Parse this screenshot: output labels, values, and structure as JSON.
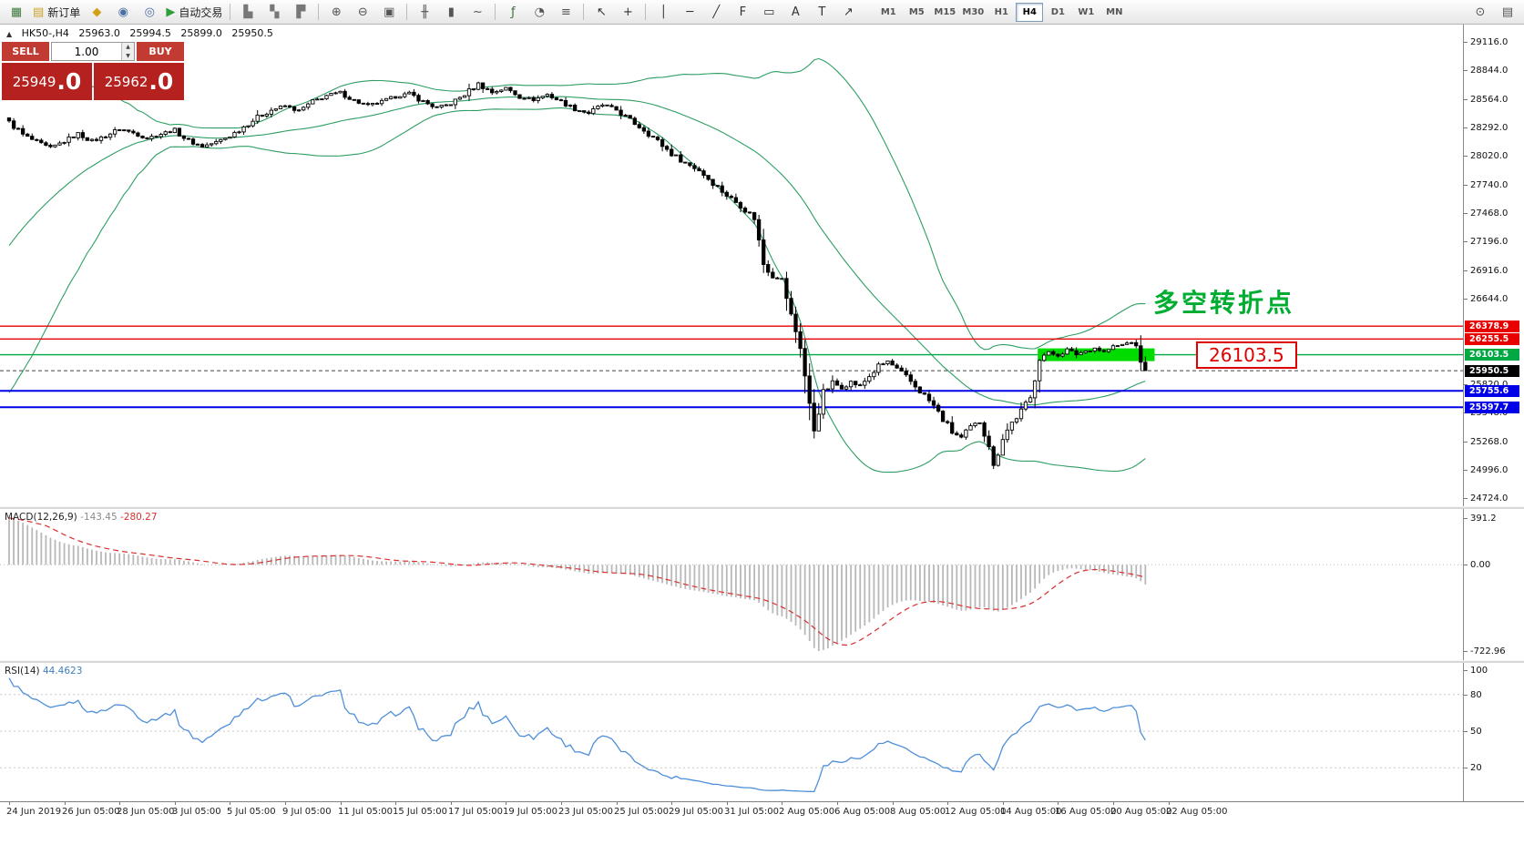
{
  "colors": {
    "bollinger": "#2E9E63",
    "bull": "#FFFFFF",
    "bear": "#000000",
    "candle_outline": "#000000",
    "macd_hist": "#B8B8B8",
    "macd_signal": "#D93030",
    "rsi_line": "#4E8FD9",
    "trade_red": "#B5211E",
    "trade_btn_red": "#C23B33",
    "level_dotted": "#c8c8c8"
  },
  "toolbar": {
    "items": [
      {
        "kind": "icon",
        "name": "new-chart-icon",
        "glyph": "▦",
        "color": "#3e7a3e"
      },
      {
        "kind": "icon-text",
        "name": "new-order-button",
        "glyph": "▤",
        "label": "新订单",
        "color": "#c9a227"
      },
      {
        "kind": "icon",
        "name": "market-watch-icon",
        "glyph": "◆",
        "color": "#d4a017"
      },
      {
        "kind": "icon",
        "name": "data-window-icon",
        "glyph": "◉",
        "color": "#4a6fa5"
      },
      {
        "kind": "icon",
        "name": "navigator-icon",
        "glyph": "◎",
        "color": "#4a6fa5"
      },
      {
        "kind": "icon-text",
        "name": "autotrading-button",
        "glyph": "▶",
        "label": "自动交易",
        "color": "#2e9e3a"
      },
      {
        "kind": "sep"
      },
      {
        "kind": "icon",
        "name": "profile-bars-icon",
        "glyph": "▙",
        "color": "#777777"
      },
      {
        "kind": "icon",
        "name": "profile-save-icon",
        "glyph": "▚",
        "color": "#777777"
      },
      {
        "kind": "icon",
        "name": "profile-load-icon",
        "glyph": "▛",
        "color": "#777777"
      },
      {
        "kind": "sep"
      },
      {
        "kind": "icon",
        "name": "zoom-in-icon",
        "glyph": "⊕",
        "color": "#555555"
      },
      {
        "kind": "icon",
        "name": "zoom-out-icon",
        "glyph": "⊖",
        "color": "#555555"
      },
      {
        "kind": "icon",
        "name": "tile-windows-icon",
        "glyph": "▣",
        "color": "#555555"
      },
      {
        "kind": "sep"
      },
      {
        "kind": "icon",
        "name": "bar-chart-type-icon",
        "glyph": "╫",
        "color": "#555555"
      },
      {
        "kind": "icon",
        "name": "candlestick-type-icon",
        "glyph": "▮",
        "color": "#555555"
      },
      {
        "kind": "icon",
        "name": "line-chart-type-icon",
        "glyph": "~",
        "color": "#555555"
      },
      {
        "kind": "sep"
      },
      {
        "kind": "icon",
        "name": "indicators-icon",
        "glyph": "ƒ",
        "color": "#3a6d3a"
      },
      {
        "kind": "icon",
        "name": "periods-icon",
        "glyph": "◔",
        "color": "#555555"
      },
      {
        "kind": "icon",
        "name": "templates-icon",
        "glyph": "≡",
        "color": "#555555"
      },
      {
        "kind": "sep"
      },
      {
        "kind": "icon",
        "name": "cursor-icon",
        "glyph": "↖",
        "color": "#333333"
      },
      {
        "kind": "icon",
        "name": "crosshair-icon",
        "glyph": "+",
        "color": "#333333"
      },
      {
        "kind": "sep"
      },
      {
        "kind": "icon",
        "name": "vertical-line-icon",
        "glyph": "│",
        "color": "#333333"
      },
      {
        "kind": "icon",
        "name": "horizontal-line-icon",
        "glyph": "─",
        "color": "#333333"
      },
      {
        "kind": "icon",
        "name": "trendline-icon",
        "glyph": "╱",
        "color": "#333333"
      },
      {
        "kind": "icon",
        "name": "fibonacci-icon",
        "glyph": "F",
        "color": "#333333"
      },
      {
        "kind": "icon",
        "name": "channel-icon",
        "glyph": "▭",
        "color": "#333333"
      },
      {
        "kind": "icon",
        "name": "text-icon",
        "glyph": "A",
        "color": "#333333"
      },
      {
        "kind": "icon",
        "name": "text-label-icon",
        "glyph": "T",
        "color": "#333333"
      },
      {
        "kind": "icon",
        "name": "arrows-icon",
        "glyph": "↗",
        "color": "#333333"
      }
    ],
    "timeframes": [
      "M1",
      "M5",
      "M15",
      "M30",
      "H1",
      "H4",
      "D1",
      "W1",
      "MN"
    ],
    "active_timeframe": "H4",
    "right_items": [
      {
        "name": "search-icon",
        "glyph": "⊙"
      },
      {
        "name": "popup-prices-icon",
        "glyph": "▤"
      }
    ]
  },
  "trade_panel": {
    "sell_label": "SELL",
    "buy_label": "BUY",
    "volume": "1.00",
    "spin_up": "▲",
    "spin_down": "▼",
    "sell_price": {
      "main": "25949",
      "frac": ".0"
    },
    "buy_price": {
      "main": "25962",
      "frac": ".0"
    }
  },
  "chart": {
    "header": {
      "collapse_icon": "▲",
      "symbol_period": "HK50-,H4",
      "open": "25963.0",
      "high": "25994.5",
      "low": "25899.0",
      "close": "25950.5"
    },
    "annotation": {
      "text": "多空转折点",
      "color": "#00AD31"
    },
    "price_label_box": {
      "text": "26103.5",
      "color": "#E00000"
    },
    "axis_labels": [
      "29116.0",
      "28844.0",
      "28564.0",
      "28292.0",
      "28020.0",
      "27740.0",
      "27468.0",
      "27196.0",
      "26916.0",
      "26644.0",
      "25820.0",
      "25548.0",
      "25268.0",
      "24996.0",
      "24724.0"
    ],
    "lines": [
      {
        "price": 26378.9,
        "label": "26378.9",
        "color": "#E80000",
        "width": 1.4
      },
      {
        "price": 26255.5,
        "label": "26255.5",
        "color": "#E80000",
        "width": 1.4
      },
      {
        "price": 26103.5,
        "label": "26103.5",
        "color": "#00A844",
        "width": 1.4
      },
      {
        "price": 25755.6,
        "label": "25755.6",
        "color": "#0000E8",
        "width": 2
      },
      {
        "price": 25597.7,
        "label": "25597.7",
        "color": "#0000E8",
        "width": 2
      }
    ],
    "current_price": {
      "price": 25950.5,
      "label": "25950.5",
      "color": "#000000"
    },
    "highlight_rect": {
      "bar_start": 224,
      "bar_end": 249,
      "price_top": 26165,
      "price_bottom": 26042,
      "color": "#00DC00"
    },
    "bollinger": {
      "period": 40,
      "deviation": 2
    }
  },
  "chart_data": {
    "type": "candlestick",
    "symbol": "HK50",
    "timeframe": "H4",
    "visible_bars": 248,
    "price_waypoints": [
      [
        0,
        28350
      ],
      [
        3,
        28220
      ],
      [
        6,
        28150
      ],
      [
        9,
        28090
      ],
      [
        12,
        28160
      ],
      [
        15,
        28230
      ],
      [
        18,
        28160
      ],
      [
        21,
        28210
      ],
      [
        24,
        28280
      ],
      [
        27,
        28240
      ],
      [
        30,
        28190
      ],
      [
        33,
        28230
      ],
      [
        36,
        28270
      ],
      [
        39,
        28160
      ],
      [
        42,
        28110
      ],
      [
        45,
        28150
      ],
      [
        48,
        28210
      ],
      [
        51,
        28300
      ],
      [
        54,
        28390
      ],
      [
        57,
        28460
      ],
      [
        60,
        28500
      ],
      [
        63,
        28450
      ],
      [
        66,
        28540
      ],
      [
        69,
        28600
      ],
      [
        72,
        28630
      ],
      [
        75,
        28550
      ],
      [
        78,
        28500
      ],
      [
        81,
        28540
      ],
      [
        84,
        28590
      ],
      [
        87,
        28620
      ],
      [
        90,
        28540
      ],
      [
        93,
        28480
      ],
      [
        96,
        28520
      ],
      [
        99,
        28610
      ],
      [
        102,
        28710
      ],
      [
        105,
        28630
      ],
      [
        108,
        28670
      ],
      [
        111,
        28590
      ],
      [
        114,
        28560
      ],
      [
        117,
        28610
      ],
      [
        120,
        28540
      ],
      [
        123,
        28470
      ],
      [
        126,
        28430
      ],
      [
        129,
        28510
      ],
      [
        132,
        28460
      ],
      [
        135,
        28360
      ],
      [
        138,
        28270
      ],
      [
        141,
        28160
      ],
      [
        144,
        28040
      ],
      [
        147,
        27950
      ],
      [
        150,
        27880
      ],
      [
        153,
        27760
      ],
      [
        156,
        27640
      ],
      [
        159,
        27540
      ],
      [
        162,
        27420
      ],
      [
        164,
        26980
      ],
      [
        166,
        26870
      ],
      [
        168,
        26830
      ],
      [
        170,
        26480
      ],
      [
        172,
        26180
      ],
      [
        174,
        25620
      ],
      [
        175,
        25380
      ],
      [
        176,
        25560
      ],
      [
        177,
        25740
      ],
      [
        179,
        25830
      ],
      [
        181,
        25790
      ],
      [
        183,
        25840
      ],
      [
        185,
        25800
      ],
      [
        187,
        25900
      ],
      [
        189,
        25990
      ],
      [
        191,
        26040
      ],
      [
        193,
        25960
      ],
      [
        195,
        25890
      ],
      [
        197,
        25800
      ],
      [
        199,
        25710
      ],
      [
        201,
        25610
      ],
      [
        203,
        25480
      ],
      [
        205,
        25360
      ],
      [
        207,
        25300
      ],
      [
        209,
        25400
      ],
      [
        211,
        25460
      ],
      [
        213,
        25240
      ],
      [
        214,
        25020
      ],
      [
        216,
        25310
      ],
      [
        218,
        25450
      ],
      [
        220,
        25560
      ],
      [
        222,
        25680
      ],
      [
        224,
        26080
      ],
      [
        226,
        26120
      ],
      [
        228,
        26100
      ],
      [
        230,
        26150
      ],
      [
        232,
        26110
      ],
      [
        234,
        26140
      ],
      [
        236,
        26170
      ],
      [
        238,
        26130
      ],
      [
        240,
        26180
      ],
      [
        242,
        26200
      ],
      [
        244,
        26230
      ],
      [
        245,
        26160
      ],
      [
        246,
        26050
      ],
      [
        247,
        25951
      ]
    ]
  },
  "macd": {
    "name": "MACD(12,26,9)",
    "main_value": "-143.45",
    "signal_value": "-280.27",
    "axis_labels": [
      "391.2",
      "0.00",
      "-722.96"
    ]
  },
  "rsi": {
    "name": "RSI(14)",
    "value": "44.4623",
    "axis_labels": [
      "100",
      "80",
      "50",
      "20"
    ],
    "levels": [
      80,
      50,
      20
    ]
  },
  "time_axis": {
    "labels": [
      "24 Jun 2019",
      "26 Jun 05:00",
      "28 Jun 05:00",
      "3 Jul 05:00",
      "5 Jul 05:00",
      "9 Jul 05:00",
      "11 Jul 05:00",
      "15 Jul 05:00",
      "17 Jul 05:00",
      "19 Jul 05:00",
      "23 Jul 05:00",
      "25 Jul 05:00",
      "29 Jul 05:00",
      "31 Jul 05:00",
      "2 Aug 05:00",
      "6 Aug 05:00",
      "8 Aug 05:00",
      "12 Aug 05:00",
      "14 Aug 05:00",
      "16 Aug 05:00",
      "20 Aug 05:00",
      "22 Aug 05:00"
    ]
  }
}
